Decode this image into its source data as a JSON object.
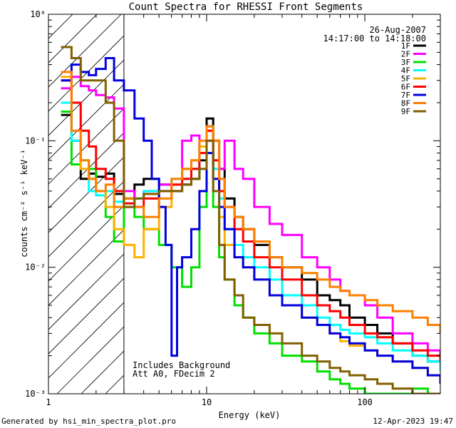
{
  "chart_data": {
    "type": "line",
    "title": "Count Spectra for RHESSI Front Segments",
    "xlabel": "Energy (keV)",
    "ylabel": "counts cm⁻² s⁻¹ keV⁻¹",
    "xscale": "log",
    "yscale": "log",
    "xlim": [
      1,
      300
    ],
    "ylim": [
      0.001,
      1
    ],
    "x_tick_labels": [
      "1",
      "10",
      "100"
    ],
    "y_tick_labels": [
      "10⁻³",
      "10⁻²",
      "10⁻¹",
      "10⁰"
    ],
    "legend_position": "top-right",
    "date": "26-Aug-2007",
    "time_range": "14:17:00 to 14:18:00",
    "annotation_lines": [
      "Includes Background",
      "Att A0, FDecim 2"
    ],
    "threshold_energy": 3,
    "footer_left": "Generated by hsi_min_spectra_plot.pro",
    "footer_right": "12-Apr-2023 19:47",
    "series": [
      {
        "name": "1F",
        "color": "#000000",
        "x": [
          1.2,
          1.4,
          1.6,
          1.8,
          2.0,
          2.3,
          2.6,
          3.0,
          3.5,
          4,
          5,
          6,
          7,
          8,
          9,
          10,
          11,
          12,
          13,
          15,
          17,
          20,
          25,
          30,
          40,
          50,
          60,
          70,
          80,
          100,
          120,
          150,
          200,
          250,
          300
        ],
        "y": [
          0.16,
          0.1,
          0.05,
          0.055,
          0.052,
          0.055,
          0.038,
          0.035,
          0.045,
          0.05,
          0.045,
          0.04,
          0.045,
          0.05,
          0.07,
          0.15,
          0.1,
          0.06,
          0.035,
          0.025,
          0.02,
          0.015,
          0.012,
          0.01,
          0.008,
          0.006,
          0.0055,
          0.005,
          0.004,
          0.0035,
          0.003,
          0.0025,
          0.002,
          0.0018,
          0.0016
        ]
      },
      {
        "name": "2F",
        "color": "#ff00ff",
        "x": [
          1.2,
          1.4,
          1.6,
          1.8,
          2.0,
          2.3,
          2.6,
          3.0,
          3.5,
          4,
          5,
          6,
          7,
          8,
          9,
          10,
          11,
          12,
          13,
          15,
          17,
          20,
          25,
          30,
          40,
          50,
          60,
          70,
          80,
          100,
          120,
          150,
          200,
          250,
          300
        ],
        "y": [
          0.26,
          0.32,
          0.27,
          0.25,
          0.23,
          0.22,
          0.18,
          0.04,
          0.035,
          0.04,
          0.045,
          0.045,
          0.1,
          0.11,
          0.08,
          0.1,
          0.07,
          0.06,
          0.1,
          0.06,
          0.05,
          0.03,
          0.022,
          0.018,
          0.012,
          0.01,
          0.008,
          0.0065,
          0.006,
          0.005,
          0.004,
          0.003,
          0.0025,
          0.0022,
          0.0018
        ]
      },
      {
        "name": "3F",
        "color": "#00e000",
        "x": [
          1.2,
          1.4,
          1.6,
          1.8,
          2.0,
          2.3,
          2.6,
          3.0,
          3.5,
          4,
          5,
          6,
          7,
          8,
          9,
          10,
          11,
          12,
          13,
          15,
          17,
          20,
          25,
          30,
          40,
          50,
          60,
          70,
          80,
          100,
          120,
          150,
          200,
          250,
          300
        ],
        "y": [
          0.17,
          0.065,
          0.07,
          0.06,
          0.04,
          0.025,
          0.016,
          0.03,
          0.025,
          0.02,
          0.015,
          0.01,
          0.007,
          0.01,
          0.03,
          0.08,
          0.03,
          0.012,
          0.008,
          0.005,
          0.004,
          0.003,
          0.0025,
          0.002,
          0.0018,
          0.0015,
          0.0013,
          0.0012,
          0.0011,
          0.001,
          0.001,
          0.001,
          0.0011,
          0.001,
          0.001
        ]
      },
      {
        "name": "4F",
        "color": "#00ffff",
        "x": [
          1.2,
          1.4,
          1.6,
          1.8,
          2.0,
          2.3,
          2.6,
          3.0,
          3.5,
          4,
          5,
          6,
          7,
          8,
          9,
          10,
          11,
          12,
          13,
          15,
          17,
          20,
          25,
          30,
          40,
          50,
          60,
          70,
          80,
          100,
          120,
          150,
          200,
          250,
          300
        ],
        "y": [
          0.2,
          0.1,
          0.06,
          0.04,
          0.037,
          0.04,
          0.033,
          0.032,
          0.035,
          0.04,
          0.04,
          0.05,
          0.05,
          0.06,
          0.08,
          0.13,
          0.06,
          0.035,
          0.02,
          0.015,
          0.012,
          0.01,
          0.008,
          0.006,
          0.005,
          0.004,
          0.0035,
          0.0032,
          0.003,
          0.0028,
          0.0025,
          0.0022,
          0.002,
          0.0018,
          0.0015
        ]
      },
      {
        "name": "5F",
        "color": "#ffb000",
        "x": [
          1.2,
          1.4,
          1.6,
          1.8,
          2.0,
          2.3,
          2.6,
          3.0,
          3.5,
          4,
          5,
          6,
          7,
          8,
          9,
          10,
          11,
          12,
          13,
          15,
          17,
          20,
          25,
          30,
          40,
          50,
          60,
          70,
          80,
          100,
          120,
          150,
          200,
          250,
          300
        ],
        "y": [
          0.32,
          0.2,
          0.06,
          0.05,
          0.04,
          0.03,
          0.02,
          0.015,
          0.012,
          0.02,
          0.03,
          0.045,
          0.06,
          0.07,
          0.09,
          0.12,
          0.05,
          0.025,
          0.015,
          0.012,
          0.01,
          0.008,
          0.006,
          0.005,
          0.004,
          0.0035,
          0.003,
          0.0026,
          0.0024,
          0.0022,
          0.002,
          0.0018,
          0.0016,
          0.0014,
          0.0012
        ]
      },
      {
        "name": "6F",
        "color": "#ff0000",
        "x": [
          1.2,
          1.4,
          1.6,
          1.8,
          2.0,
          2.3,
          2.6,
          3.0,
          3.5,
          4,
          5,
          6,
          7,
          8,
          9,
          10,
          11,
          12,
          13,
          15,
          17,
          20,
          25,
          30,
          40,
          50,
          60,
          70,
          80,
          100,
          120,
          150,
          200,
          250,
          300
        ],
        "y": [
          0.3,
          0.2,
          0.12,
          0.09,
          0.06,
          0.05,
          0.04,
          0.032,
          0.03,
          0.035,
          0.04,
          0.045,
          0.05,
          0.06,
          0.08,
          0.12,
          0.07,
          0.04,
          0.03,
          0.02,
          0.016,
          0.012,
          0.01,
          0.008,
          0.006,
          0.005,
          0.0045,
          0.004,
          0.0035,
          0.003,
          0.0028,
          0.0025,
          0.0022,
          0.002,
          0.0018
        ]
      },
      {
        "name": "7F",
        "color": "#0000e0",
        "x": [
          1.2,
          1.4,
          1.6,
          1.8,
          2.0,
          2.3,
          2.6,
          3.0,
          3.5,
          4,
          4.5,
          5,
          5.5,
          6,
          6.5,
          7,
          8,
          9,
          10,
          11,
          12,
          13,
          15,
          17,
          20,
          25,
          30,
          40,
          50,
          60,
          70,
          80,
          100,
          120,
          150,
          200,
          250,
          300
        ],
        "y": [
          0.3,
          0.4,
          0.35,
          0.33,
          0.37,
          0.45,
          0.3,
          0.25,
          0.15,
          0.1,
          0.05,
          0.03,
          0.015,
          0.002,
          0.01,
          0.012,
          0.02,
          0.04,
          0.08,
          0.05,
          0.03,
          0.02,
          0.012,
          0.01,
          0.008,
          0.006,
          0.005,
          0.004,
          0.0035,
          0.003,
          0.0028,
          0.0025,
          0.0022,
          0.002,
          0.0018,
          0.0016,
          0.0014,
          0.0012
        ]
      },
      {
        "name": "8F",
        "color": "#ff8000",
        "x": [
          1.2,
          1.4,
          1.6,
          1.8,
          2.0,
          2.3,
          2.6,
          3.0,
          3.5,
          4,
          5,
          6,
          7,
          8,
          9,
          10,
          11,
          12,
          13,
          15,
          17,
          20,
          25,
          30,
          40,
          50,
          60,
          70,
          80,
          100,
          120,
          150,
          200,
          250,
          300
        ],
        "y": [
          0.35,
          0.12,
          0.07,
          0.05,
          0.04,
          0.045,
          0.03,
          0.035,
          0.03,
          0.025,
          0.035,
          0.05,
          0.06,
          0.07,
          0.1,
          0.13,
          0.1,
          0.05,
          0.03,
          0.025,
          0.02,
          0.016,
          0.012,
          0.01,
          0.009,
          0.008,
          0.007,
          0.0065,
          0.006,
          0.0055,
          0.005,
          0.0045,
          0.004,
          0.0035,
          0.003
        ]
      },
      {
        "name": "9F",
        "color": "#806000",
        "x": [
          1.2,
          1.4,
          1.6,
          1.8,
          2.0,
          2.3,
          2.6,
          3.0,
          3.5,
          4,
          5,
          6,
          7,
          8,
          9,
          10,
          11,
          12,
          13,
          15,
          17,
          20,
          25,
          30,
          40,
          50,
          60,
          70,
          80,
          100,
          120,
          150,
          200,
          250,
          300
        ],
        "y": [
          0.55,
          0.45,
          0.3,
          0.3,
          0.3,
          0.2,
          0.1,
          0.03,
          0.035,
          0.038,
          0.04,
          0.04,
          0.045,
          0.05,
          0.06,
          0.1,
          0.04,
          0.015,
          0.008,
          0.006,
          0.004,
          0.0035,
          0.003,
          0.0025,
          0.002,
          0.0018,
          0.0016,
          0.0015,
          0.0014,
          0.0013,
          0.0012,
          0.0011,
          0.001,
          0.001,
          0.001
        ]
      }
    ]
  }
}
